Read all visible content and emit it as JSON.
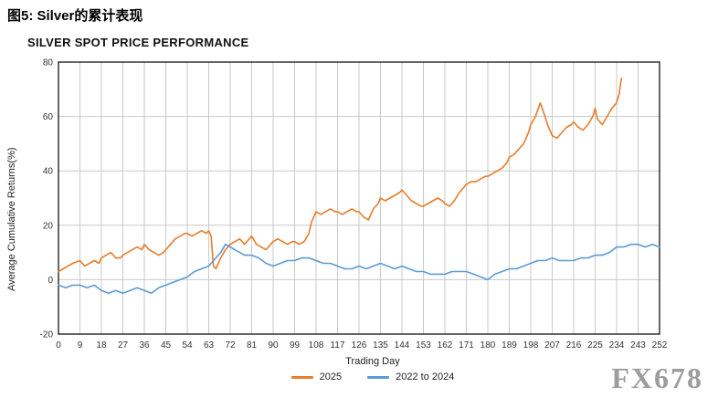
{
  "page": {
    "figure_title": "图5: Silver的累计表现",
    "watermark": "FX678"
  },
  "chart_data": {
    "type": "line",
    "title": "SILVER SPOT PRICE PERFORMANCE",
    "xlabel": "Trading Day",
    "ylabel": "Average Cumulative Returns(%)",
    "xlim": [
      0,
      252
    ],
    "ylim": [
      -20,
      80
    ],
    "xticks": [
      0,
      9,
      18,
      27,
      36,
      45,
      54,
      63,
      72,
      81,
      90,
      99,
      108,
      117,
      126,
      135,
      144,
      153,
      162,
      171,
      180,
      189,
      198,
      207,
      216,
      225,
      234,
      243,
      252
    ],
    "yticks": [
      -20,
      0,
      20,
      40,
      60,
      80
    ],
    "grid": true,
    "legend_position": "bottom",
    "series": [
      {
        "name": "2025",
        "color": "#E87D2B",
        "points": [
          [
            0,
            3
          ],
          [
            2,
            4
          ],
          [
            4,
            5
          ],
          [
            6,
            6
          ],
          [
            9,
            7
          ],
          [
            11,
            5
          ],
          [
            13,
            6
          ],
          [
            15,
            7
          ],
          [
            17,
            6
          ],
          [
            18,
            8
          ],
          [
            20,
            9
          ],
          [
            22,
            10
          ],
          [
            24,
            8
          ],
          [
            26,
            8
          ],
          [
            27,
            9
          ],
          [
            29,
            10
          ],
          [
            31,
            11
          ],
          [
            33,
            12
          ],
          [
            35,
            11
          ],
          [
            36,
            13
          ],
          [
            38,
            11
          ],
          [
            40,
            10
          ],
          [
            42,
            9
          ],
          [
            44,
            10
          ],
          [
            45,
            11
          ],
          [
            47,
            13
          ],
          [
            49,
            15
          ],
          [
            51,
            16
          ],
          [
            53,
            17
          ],
          [
            54,
            17
          ],
          [
            56,
            16
          ],
          [
            58,
            17
          ],
          [
            60,
            18
          ],
          [
            62,
            17
          ],
          [
            63,
            18
          ],
          [
            64,
            16
          ],
          [
            65,
            5
          ],
          [
            66,
            4
          ],
          [
            68,
            8
          ],
          [
            70,
            11
          ],
          [
            72,
            13
          ],
          [
            74,
            14
          ],
          [
            76,
            15
          ],
          [
            78,
            13
          ],
          [
            80,
            15
          ],
          [
            81,
            16
          ],
          [
            83,
            13
          ],
          [
            85,
            12
          ],
          [
            87,
            11
          ],
          [
            89,
            13
          ],
          [
            90,
            14
          ],
          [
            92,
            15
          ],
          [
            94,
            14
          ],
          [
            96,
            13
          ],
          [
            98,
            14
          ],
          [
            99,
            14
          ],
          [
            101,
            13
          ],
          [
            103,
            14
          ],
          [
            105,
            17
          ],
          [
            106,
            21
          ],
          [
            108,
            25
          ],
          [
            110,
            24
          ],
          [
            112,
            25
          ],
          [
            114,
            26
          ],
          [
            116,
            25
          ],
          [
            117,
            25
          ],
          [
            119,
            24
          ],
          [
            121,
            25
          ],
          [
            123,
            26
          ],
          [
            125,
            25
          ],
          [
            126,
            25
          ],
          [
            128,
            23
          ],
          [
            130,
            22
          ],
          [
            132,
            26
          ],
          [
            134,
            28
          ],
          [
            135,
            30
          ],
          [
            137,
            29
          ],
          [
            139,
            30
          ],
          [
            141,
            31
          ],
          [
            143,
            32
          ],
          [
            144,
            33
          ],
          [
            146,
            31
          ],
          [
            148,
            29
          ],
          [
            150,
            28
          ],
          [
            152,
            27
          ],
          [
            153,
            27
          ],
          [
            155,
            28
          ],
          [
            157,
            29
          ],
          [
            159,
            30
          ],
          [
            161,
            29
          ],
          [
            162,
            28
          ],
          [
            164,
            27
          ],
          [
            166,
            29
          ],
          [
            168,
            32
          ],
          [
            170,
            34
          ],
          [
            171,
            35
          ],
          [
            173,
            36
          ],
          [
            175,
            36
          ],
          [
            177,
            37
          ],
          [
            179,
            38
          ],
          [
            180,
            38
          ],
          [
            182,
            39
          ],
          [
            184,
            40
          ],
          [
            186,
            41
          ],
          [
            188,
            43
          ],
          [
            189,
            45
          ],
          [
            191,
            46
          ],
          [
            193,
            48
          ],
          [
            195,
            50
          ],
          [
            197,
            54
          ],
          [
            198,
            57
          ],
          [
            200,
            60
          ],
          [
            202,
            65
          ],
          [
            204,
            60
          ],
          [
            205,
            57
          ],
          [
            207,
            53
          ],
          [
            209,
            52
          ],
          [
            211,
            54
          ],
          [
            213,
            56
          ],
          [
            215,
            57
          ],
          [
            216,
            58
          ],
          [
            218,
            56
          ],
          [
            220,
            55
          ],
          [
            222,
            57
          ],
          [
            224,
            60
          ],
          [
            225,
            63
          ],
          [
            226,
            59
          ],
          [
            228,
            57
          ],
          [
            230,
            60
          ],
          [
            232,
            63
          ],
          [
            233,
            64
          ],
          [
            234,
            65
          ],
          [
            235,
            68
          ],
          [
            236,
            74
          ]
        ]
      },
      {
        "name": "2022 to 2024",
        "color": "#5B9BD5",
        "points": [
          [
            0,
            -2
          ],
          [
            3,
            -3
          ],
          [
            6,
            -2
          ],
          [
            9,
            -2
          ],
          [
            12,
            -3
          ],
          [
            15,
            -2
          ],
          [
            18,
            -4
          ],
          [
            21,
            -5
          ],
          [
            24,
            -4
          ],
          [
            27,
            -5
          ],
          [
            30,
            -4
          ],
          [
            33,
            -3
          ],
          [
            36,
            -4
          ],
          [
            39,
            -5
          ],
          [
            42,
            -3
          ],
          [
            45,
            -2
          ],
          [
            48,
            -1
          ],
          [
            51,
            0
          ],
          [
            54,
            1
          ],
          [
            57,
            3
          ],
          [
            60,
            4
          ],
          [
            63,
            5
          ],
          [
            66,
            8
          ],
          [
            68,
            10
          ],
          [
            70,
            13
          ],
          [
            72,
            12
          ],
          [
            74,
            11
          ],
          [
            76,
            10
          ],
          [
            78,
            9
          ],
          [
            81,
            9
          ],
          [
            84,
            8
          ],
          [
            87,
            6
          ],
          [
            90,
            5
          ],
          [
            93,
            6
          ],
          [
            96,
            7
          ],
          [
            99,
            7
          ],
          [
            102,
            8
          ],
          [
            105,
            8
          ],
          [
            108,
            7
          ],
          [
            111,
            6
          ],
          [
            114,
            6
          ],
          [
            117,
            5
          ],
          [
            120,
            4
          ],
          [
            123,
            4
          ],
          [
            126,
            5
          ],
          [
            129,
            4
          ],
          [
            132,
            5
          ],
          [
            135,
            6
          ],
          [
            138,
            5
          ],
          [
            141,
            4
          ],
          [
            144,
            5
          ],
          [
            147,
            4
          ],
          [
            150,
            3
          ],
          [
            153,
            3
          ],
          [
            156,
            2
          ],
          [
            159,
            2
          ],
          [
            162,
            2
          ],
          [
            165,
            3
          ],
          [
            168,
            3
          ],
          [
            171,
            3
          ],
          [
            174,
            2
          ],
          [
            177,
            1
          ],
          [
            180,
            0
          ],
          [
            183,
            2
          ],
          [
            186,
            3
          ],
          [
            189,
            4
          ],
          [
            192,
            4
          ],
          [
            195,
            5
          ],
          [
            198,
            6
          ],
          [
            201,
            7
          ],
          [
            204,
            7
          ],
          [
            207,
            8
          ],
          [
            210,
            7
          ],
          [
            213,
            7
          ],
          [
            216,
            7
          ],
          [
            219,
            8
          ],
          [
            222,
            8
          ],
          [
            225,
            9
          ],
          [
            228,
            9
          ],
          [
            231,
            10
          ],
          [
            234,
            12
          ],
          [
            237,
            12
          ],
          [
            240,
            13
          ],
          [
            243,
            13
          ],
          [
            246,
            12
          ],
          [
            249,
            13
          ],
          [
            252,
            12
          ]
        ]
      }
    ]
  }
}
